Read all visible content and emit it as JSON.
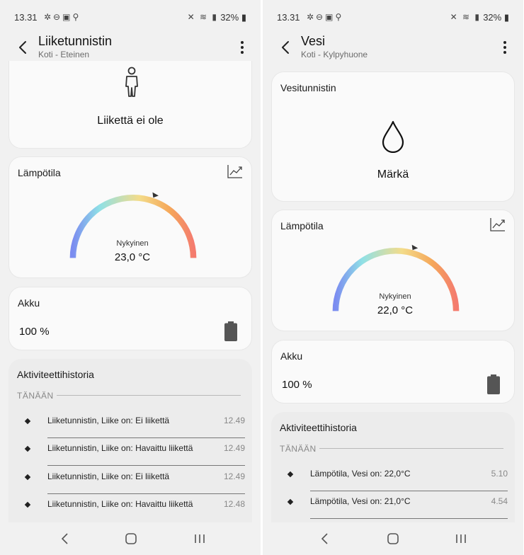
{
  "left": {
    "status": {
      "time": "13.31",
      "battery": "32%"
    },
    "appbar": {
      "title": "Liiketunnistin",
      "subtitle": "Koti - Eteinen"
    },
    "motion_card": {
      "state": "Liikettä ei ole",
      "icon": "person-icon"
    },
    "temperature_card": {
      "title": "Lämpötila",
      "caption": "Nykyinen",
      "value": "23,0 °C"
    },
    "battery_card": {
      "title": "Akku",
      "value": "100 %"
    },
    "history": {
      "title": "Aktiviteettihistoria",
      "section": "TÄNÄÄN",
      "items": [
        {
          "text": "Liiketunnistin, Liike on: Ei liikettä",
          "time": "12.49"
        },
        {
          "text": "Liiketunnistin, Liike on: Havaittu liikettä",
          "time": "12.49"
        },
        {
          "text": "Liiketunnistin, Liike on: Ei liikettä",
          "time": "12.49"
        },
        {
          "text": "Liiketunnistin, Liike on: Havaittu liikettä",
          "time": "12.48"
        }
      ]
    }
  },
  "right": {
    "status": {
      "time": "13.31",
      "battery": "32%"
    },
    "appbar": {
      "title": "Vesi",
      "subtitle": "Koti - Kylpyhuone"
    },
    "water_card": {
      "title": "Vesitunnistin",
      "state": "Märkä",
      "icon": "water-drop-icon"
    },
    "temperature_card": {
      "title": "Lämpötila",
      "caption": "Nykyinen",
      "value": "22,0 °C"
    },
    "battery_card": {
      "title": "Akku",
      "value": "100 %"
    },
    "history": {
      "title": "Aktiviteettihistoria",
      "section": "TÄNÄÄN",
      "items": [
        {
          "text": "Lämpötila, Vesi on: 22,0°C",
          "time": "5.10"
        },
        {
          "text": "Lämpötila, Vesi on: 21,0°C",
          "time": "4.54"
        }
      ]
    }
  },
  "colors": {
    "gauge_start": "#7b8cf0",
    "gauge_cyan": "#8fe0e6",
    "gauge_yellow": "#f3dc8a",
    "gauge_orange": "#f5a85a",
    "gauge_end": "#f47b6e"
  }
}
